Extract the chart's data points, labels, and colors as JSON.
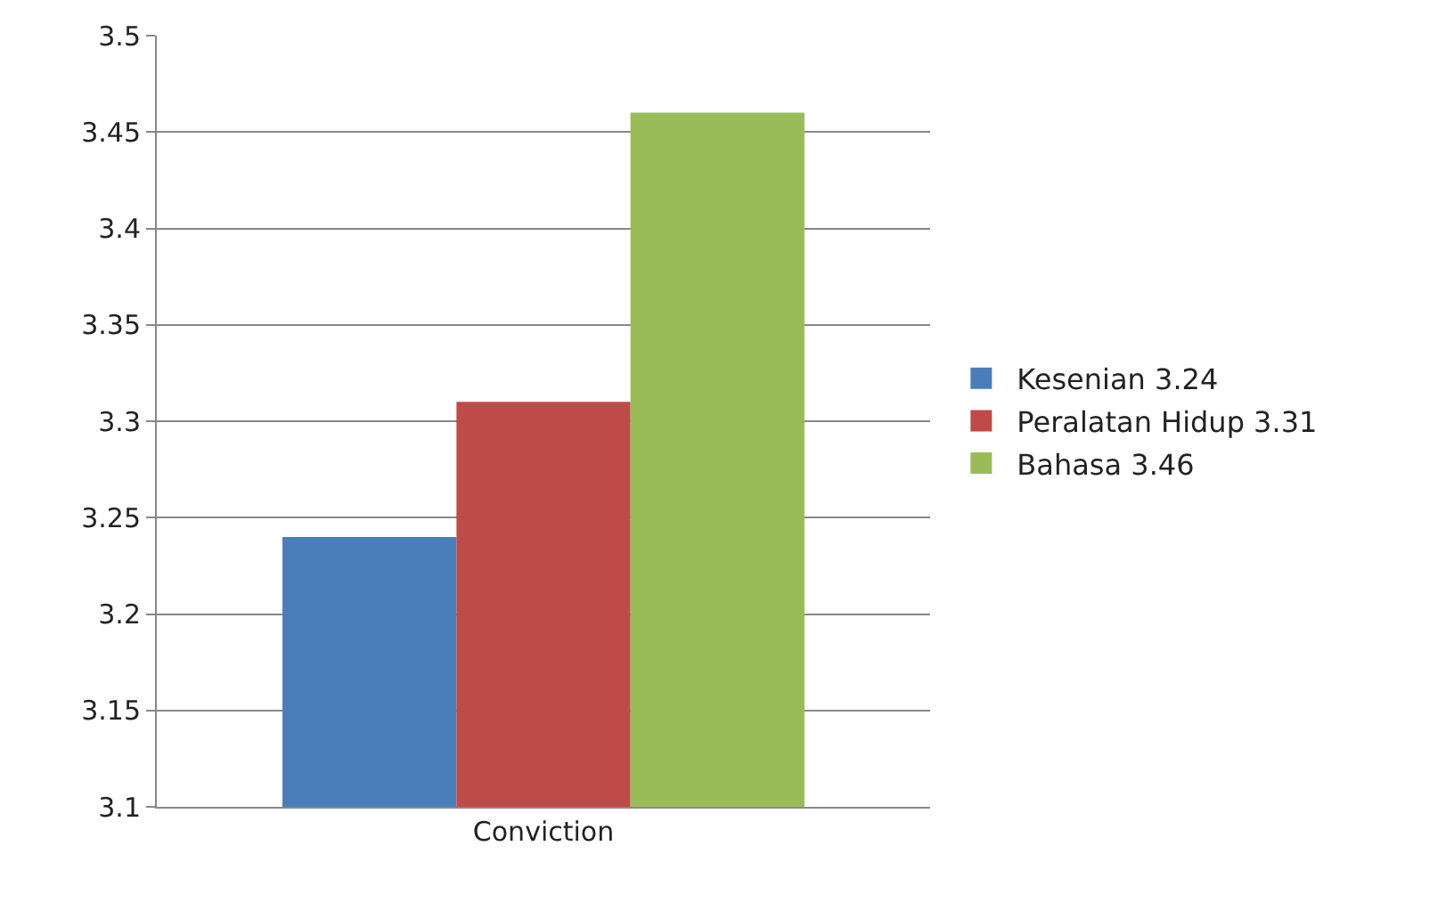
{
  "chart_data": {
    "type": "bar",
    "categories": [
      "Conviction"
    ],
    "series": [
      {
        "name": "Kesenian 3.24",
        "color": "#4a7ebb",
        "values": [
          3.24
        ]
      },
      {
        "name": "Peralatan Hidup 3.31",
        "color": "#be4b48",
        "values": [
          3.31
        ]
      },
      {
        "name": "Bahasa 3.46",
        "color": "#9bbb59",
        "values": [
          3.46
        ]
      }
    ],
    "ylim": [
      3.1,
      3.5
    ],
    "yticks": [
      3.1,
      3.15,
      3.2,
      3.25,
      3.3,
      3.35,
      3.4,
      3.45,
      3.5
    ],
    "grid": "y",
    "legend": "right"
  }
}
